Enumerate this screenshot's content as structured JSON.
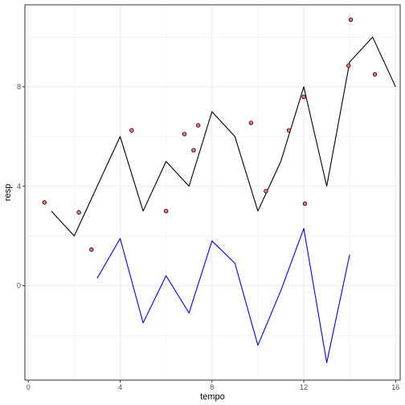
{
  "chart_data": {
    "type": "line",
    "xlabel": "tempo",
    "ylabel": "resp",
    "xlim": [
      -0.15,
      16.2
    ],
    "ylim": [
      -3.8,
      11.3
    ],
    "x_ticks": [
      0,
      4,
      8,
      12,
      16
    ],
    "y_ticks": [
      0,
      4,
      8
    ],
    "x_tick_labels": [
      "0",
      "4",
      "8",
      "12",
      "16"
    ],
    "y_tick_labels": [
      "0",
      "4",
      "8"
    ],
    "grid": true,
    "legend": "none",
    "series": [
      {
        "type": "line",
        "color": "#000000",
        "x": [
          1,
          2,
          3,
          4,
          5,
          6,
          7,
          8,
          9,
          10,
          11,
          12,
          13,
          14,
          15,
          16
        ],
        "y": [
          3,
          2,
          4,
          6,
          3,
          5,
          4,
          7,
          6,
          3,
          5,
          8,
          4,
          9,
          10,
          8
        ]
      },
      {
        "type": "line",
        "color": "#0000ff",
        "x": [
          3,
          4,
          5,
          6,
          7,
          8,
          9,
          10,
          11,
          12,
          13,
          14
        ],
        "y": [
          0.3,
          1.9,
          -1.5,
          0.4,
          -1.1,
          1.8,
          0.9,
          -2.4,
          -0.2,
          2.3,
          -3.1,
          1.25
        ]
      },
      {
        "type": "scatter",
        "color": "#000000",
        "fill": "#f8766d",
        "x": [
          0.7,
          2.2,
          2.75,
          4.5,
          6.0,
          6.8,
          7.2,
          7.4,
          9.7,
          10.35,
          11.35,
          12.05,
          12.0,
          13.95,
          14.05,
          15.1
        ],
        "y": [
          3.35,
          2.95,
          1.45,
          6.25,
          3.0,
          6.1,
          5.45,
          6.45,
          6.55,
          3.8,
          6.25,
          3.3,
          7.6,
          8.85,
          10.7,
          8.5
        ]
      }
    ]
  }
}
